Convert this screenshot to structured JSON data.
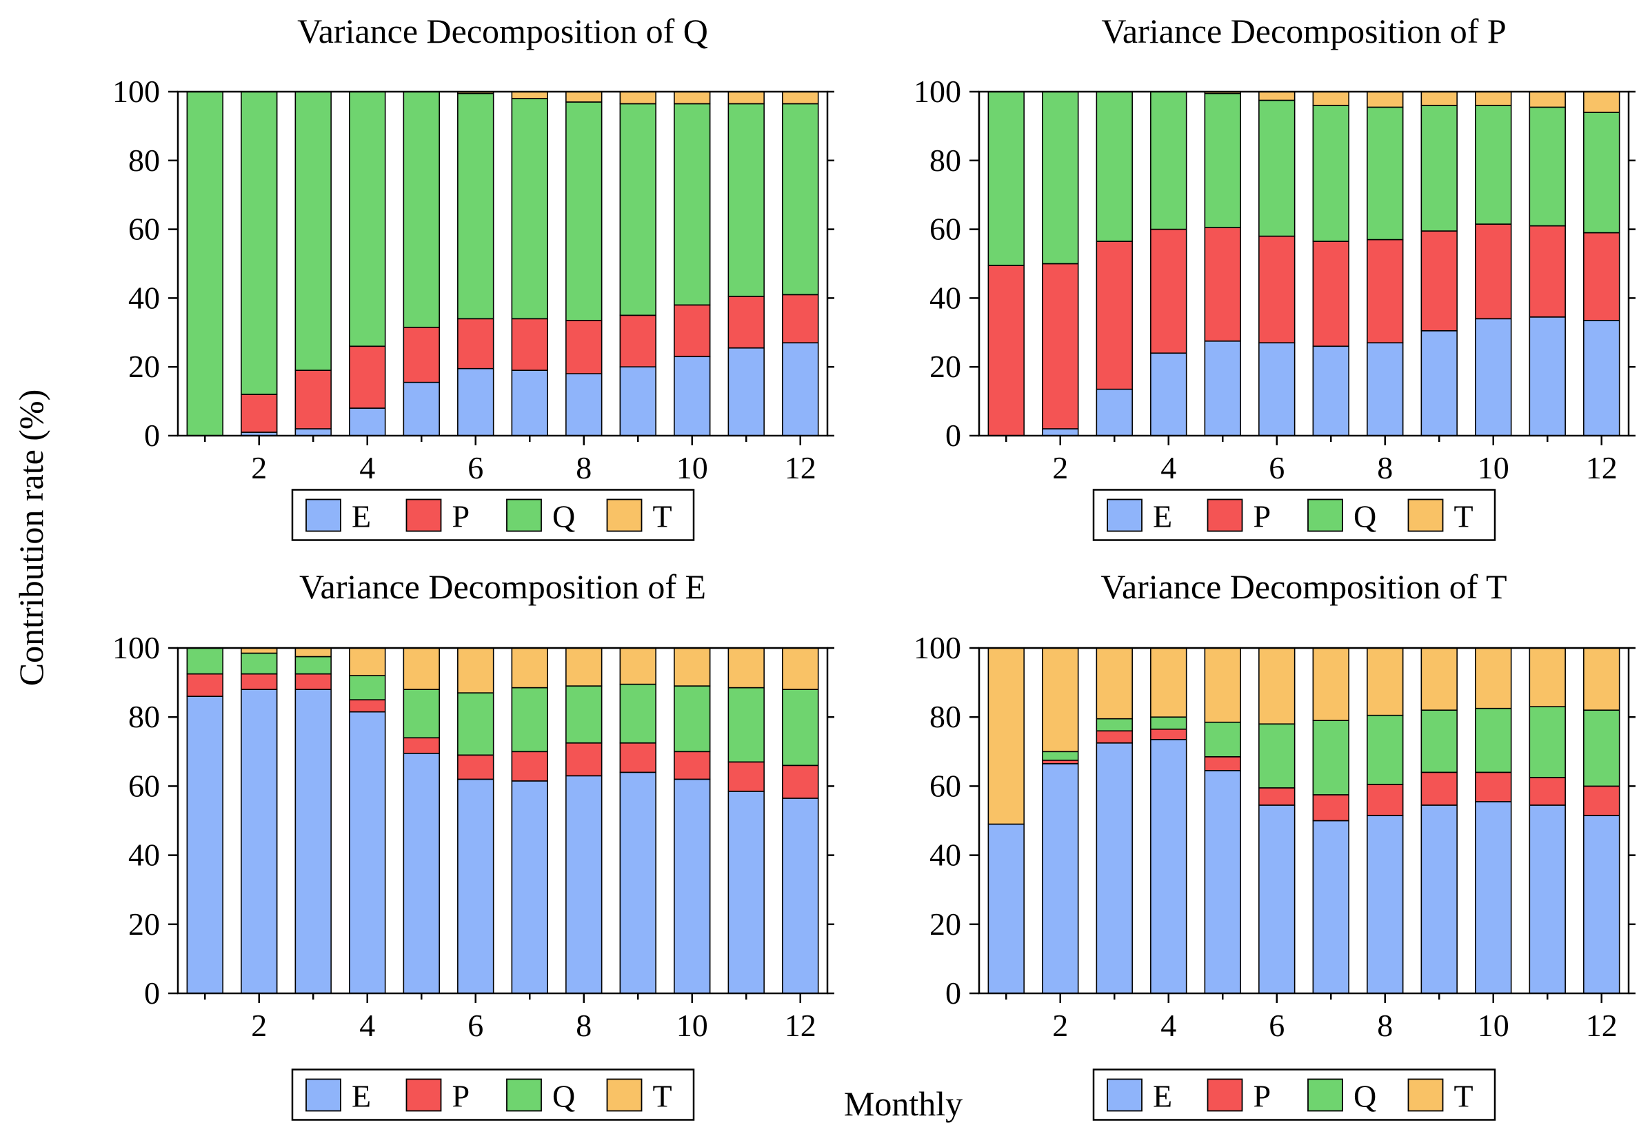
{
  "figure": {
    "ylabel": "Contribution rate (%)",
    "xlabel": "Monthly"
  },
  "colors": {
    "E": "#8fb4fa",
    "P": "#f45454",
    "Q": "#6fd46f",
    "T": "#f9c266",
    "frame": "#000000"
  },
  "chart_data": [
    {
      "type": "bar",
      "stacked": true,
      "title": "Variance Decomposition of Q",
      "categories": [
        1,
        2,
        3,
        4,
        5,
        6,
        7,
        8,
        9,
        10,
        11,
        12
      ],
      "tick_labels": [
        "2",
        "4",
        "6",
        "8",
        "10",
        "12"
      ],
      "yticks": [
        "0",
        "20",
        "40",
        "60",
        "80",
        "100"
      ],
      "ylim": [
        0,
        100
      ],
      "legend": [
        "E",
        "P",
        "Q",
        "T"
      ],
      "series": [
        {
          "name": "E",
          "values": [
            0,
            1,
            2,
            8,
            15.5,
            19.5,
            19,
            18,
            20,
            23,
            25.5,
            27
          ]
        },
        {
          "name": "P",
          "values": [
            0,
            11,
            17,
            18,
            16,
            14.5,
            15,
            15.5,
            15,
            15,
            15,
            14
          ]
        },
        {
          "name": "Q",
          "values": [
            100,
            88,
            81,
            74,
            68.5,
            65.5,
            64,
            63.5,
            61.5,
            58.5,
            56,
            55.5
          ]
        },
        {
          "name": "T",
          "values": [
            0,
            0,
            0,
            0,
            0,
            0.5,
            2,
            3,
            3.5,
            3.5,
            3.5,
            3.5
          ]
        }
      ]
    },
    {
      "type": "bar",
      "stacked": true,
      "title": "Variance Decomposition of P",
      "categories": [
        1,
        2,
        3,
        4,
        5,
        6,
        7,
        8,
        9,
        10,
        11,
        12
      ],
      "tick_labels": [
        "2",
        "4",
        "6",
        "8",
        "10",
        "12"
      ],
      "yticks": [
        "0",
        "20",
        "40",
        "60",
        "80",
        "100"
      ],
      "ylim": [
        0,
        100
      ],
      "legend": [
        "E",
        "P",
        "Q",
        "T"
      ],
      "series": [
        {
          "name": "E",
          "values": [
            0,
            2,
            13.5,
            24,
            27.5,
            27,
            26,
            27,
            30.5,
            34,
            34.5,
            33.5
          ]
        },
        {
          "name": "P",
          "values": [
            49.5,
            48,
            43,
            36,
            33,
            31,
            30.5,
            30,
            29,
            27.5,
            26.5,
            25.5
          ]
        },
        {
          "name": "Q",
          "values": [
            50.5,
            50,
            43.5,
            40,
            39,
            39.5,
            39.5,
            38.5,
            36.5,
            34.5,
            34.5,
            35
          ]
        },
        {
          "name": "T",
          "values": [
            0,
            0,
            0,
            0,
            0.5,
            2.5,
            4,
            4.5,
            4,
            4,
            4.5,
            6
          ]
        }
      ]
    },
    {
      "type": "bar",
      "stacked": true,
      "title": "Variance Decomposition of E",
      "categories": [
        1,
        2,
        3,
        4,
        5,
        6,
        7,
        8,
        9,
        10,
        11,
        12
      ],
      "tick_labels": [
        "2",
        "4",
        "6",
        "8",
        "10",
        "12"
      ],
      "yticks": [
        "0",
        "20",
        "40",
        "60",
        "80",
        "100"
      ],
      "ylim": [
        0,
        100
      ],
      "legend": [
        "E",
        "P",
        "Q",
        "T"
      ],
      "series": [
        {
          "name": "E",
          "values": [
            86,
            88,
            88,
            81.5,
            69.5,
            62,
            61.5,
            63,
            64,
            62,
            58.5,
            56.5
          ]
        },
        {
          "name": "P",
          "values": [
            6.5,
            4.5,
            4.5,
            3.5,
            4.5,
            7,
            8.5,
            9.5,
            8.5,
            8,
            8.5,
            9.5
          ]
        },
        {
          "name": "Q",
          "values": [
            7.5,
            6,
            5,
            7,
            14,
            18,
            18.5,
            16.5,
            17,
            19,
            21.5,
            22
          ]
        },
        {
          "name": "T",
          "values": [
            0,
            1.5,
            2.5,
            8,
            12,
            13,
            11.5,
            11,
            10.5,
            11,
            11.5,
            12
          ]
        }
      ]
    },
    {
      "type": "bar",
      "stacked": true,
      "title": "Variance Decomposition of T",
      "categories": [
        1,
        2,
        3,
        4,
        5,
        6,
        7,
        8,
        9,
        10,
        11,
        12
      ],
      "tick_labels": [
        "2",
        "4",
        "6",
        "8",
        "10",
        "12"
      ],
      "yticks": [
        "0",
        "20",
        "40",
        "60",
        "80",
        "100"
      ],
      "ylim": [
        0,
        100
      ],
      "legend": [
        "E",
        "P",
        "Q",
        "T"
      ],
      "series": [
        {
          "name": "E",
          "values": [
            49,
            66.5,
            72.5,
            73.5,
            64.5,
            54.5,
            50,
            51.5,
            54.5,
            55.5,
            54.5,
            51.5
          ]
        },
        {
          "name": "P",
          "values": [
            0,
            1,
            3.5,
            3,
            4,
            5,
            7.5,
            9,
            9.5,
            8.5,
            8,
            8.5
          ]
        },
        {
          "name": "Q",
          "values": [
            0,
            2.5,
            3.5,
            3.5,
            10,
            18.5,
            21.5,
            20,
            18,
            18.5,
            20.5,
            22
          ]
        },
        {
          "name": "T",
          "values": [
            51,
            30,
            20.5,
            20,
            21.5,
            22,
            21,
            19.5,
            18,
            17.5,
            17,
            18
          ]
        }
      ]
    }
  ]
}
